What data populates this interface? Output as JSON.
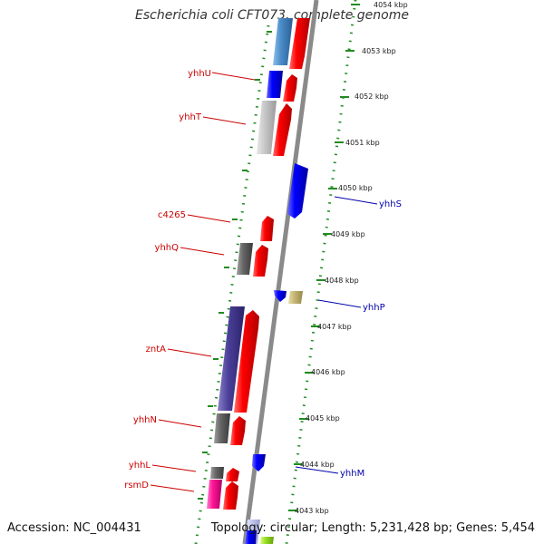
{
  "title": "Escherichia coli CFT073, complete genome",
  "accession": "Accession: NC_004431",
  "topology": "Topology: circular; Length: 5,231,428 bp; Genes: 5,454",
  "kbp_labels": [
    "4054 kbp",
    "4053 kbp",
    "4052 kbp",
    "4051 kbp",
    "4050 kbp",
    "4049 kbp",
    "4048 kbp",
    "4047 kbp",
    "4046 kbp",
    "4045 kbp",
    "4044 kbp",
    "4043 kbp"
  ],
  "genes_left": [
    "yhhU",
    "yhhT",
    "c4265",
    "yhhQ",
    "zntA",
    "yhhN",
    "yhhL",
    "rsmD"
  ],
  "genes_right": [
    "yhhS",
    "yhhP",
    "yhhM"
  ],
  "colors": {
    "forward": "#ff0000",
    "reverse": "#0000ff",
    "left_label": "#cc0000",
    "right_label": "#0000aa",
    "tick": "#228b22"
  }
}
